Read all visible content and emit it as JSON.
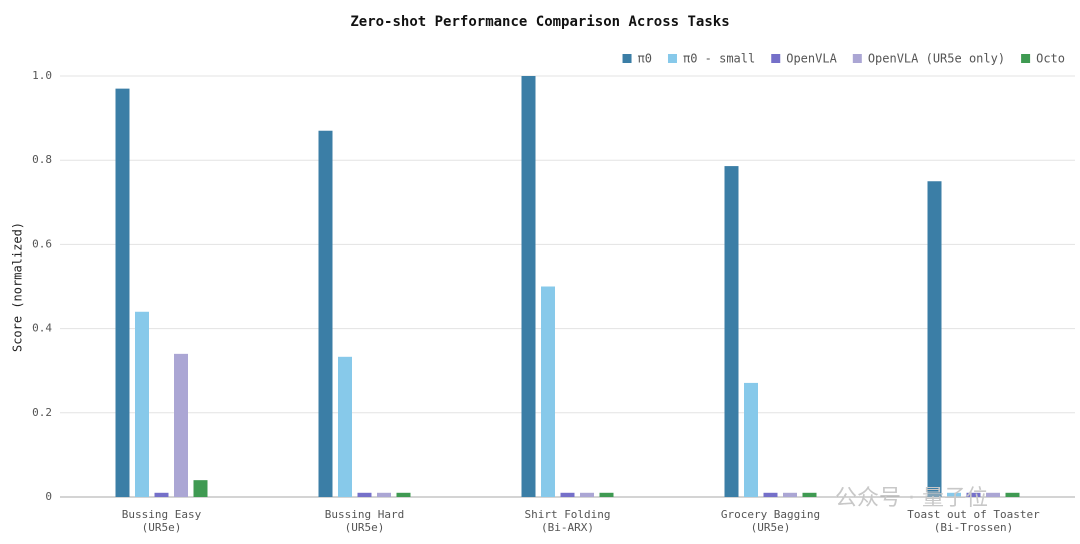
{
  "chart_data": {
    "type": "bar",
    "title": "Zero-shot Performance Comparison Across Tasks",
    "y_label": "Score (normalized)",
    "categories": [
      [
        "Bussing Easy",
        "(UR5e)"
      ],
      [
        "Bussing Hard",
        "(UR5e)"
      ],
      [
        "Shirt Folding",
        "(Bi-ARX)"
      ],
      [
        "Grocery Bagging",
        "(UR5e)"
      ],
      [
        "Toast out of Toaster",
        "(Bi-Trossen)"
      ]
    ],
    "series": [
      {
        "name": "π0",
        "color": "#3b7ea6",
        "values": [
          0.97,
          0.87,
          1.0,
          0.786,
          0.75
        ]
      },
      {
        "name": "π0 - small",
        "color": "#87c9ea",
        "values": [
          0.44,
          0.333,
          0.5,
          0.271,
          0.01
        ]
      },
      {
        "name": "OpenVLA",
        "color": "#7570c9",
        "values": [
          0.01,
          0.01,
          0.01,
          0.01,
          0.01
        ]
      },
      {
        "name": "OpenVLA (UR5e only)",
        "color": "#aba6d4",
        "values": [
          0.34,
          0.01,
          0.01,
          0.01,
          0.01
        ]
      },
      {
        "name": "Octo",
        "color": "#3f9a52",
        "values": [
          0.04,
          0.01,
          0.01,
          0.01,
          0.01
        ]
      }
    ],
    "ylim": [
      0,
      1
    ],
    "yticks": [
      0,
      0.2,
      0.4,
      0.6,
      0.8,
      {
        "value": 1,
        "label": "1.0"
      }
    ],
    "grid": true,
    "legend": "top-right",
    "watermark": "公众号 · 量子位"
  }
}
